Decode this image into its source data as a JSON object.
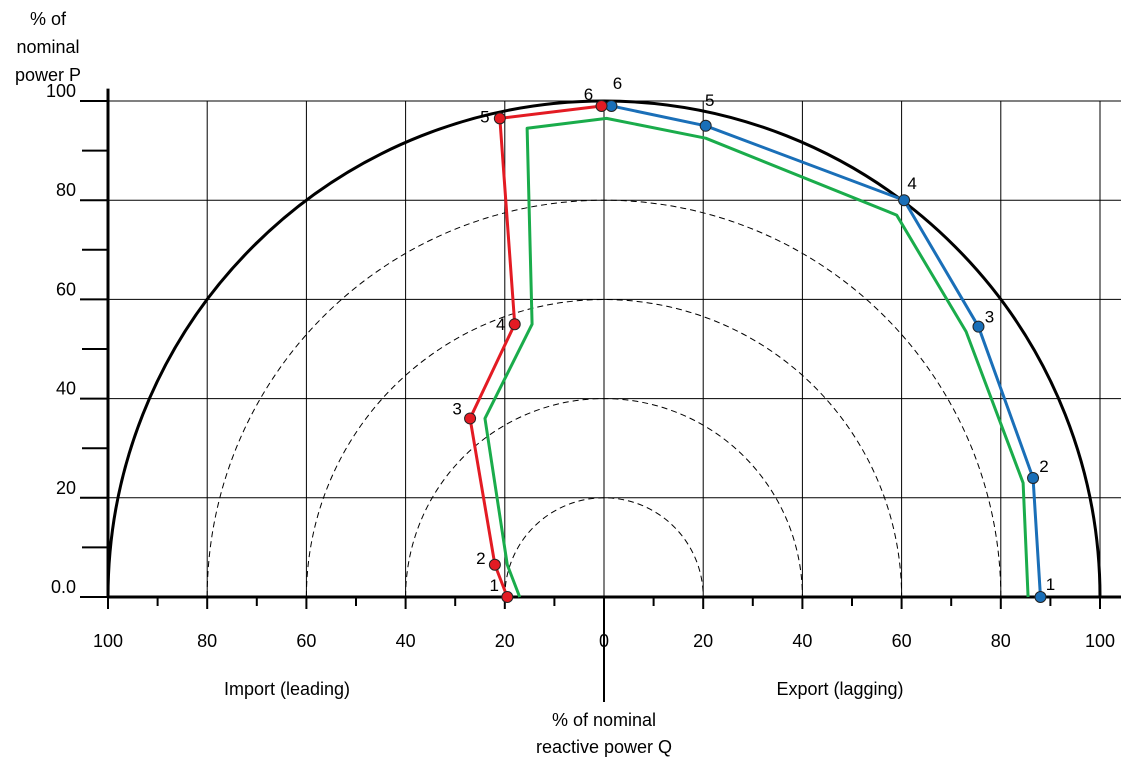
{
  "chart_data": {
    "type": "line",
    "title": "",
    "ylabel_lines": [
      "% of",
      "nominal",
      "power P"
    ],
    "xlabel_lines": [
      "% of nominal",
      "reactive power Q"
    ],
    "region_labels": {
      "left": "Import (leading)",
      "right": "Export (lagging)"
    },
    "x_tick_labels": [
      "100",
      "80",
      "60",
      "40",
      "20",
      "0",
      "20",
      "40",
      "60",
      "80",
      "100"
    ],
    "x_tick_values": [
      -100,
      -80,
      -60,
      -40,
      -20,
      0,
      20,
      40,
      60,
      80,
      100
    ],
    "y_tick_labels": [
      "0.0",
      "20",
      "40",
      "60",
      "80",
      "100"
    ],
    "y_tick_values": [
      0,
      20,
      40,
      60,
      80,
      100
    ],
    "xlim": [
      -100,
      100
    ],
    "ylim": [
      0,
      100
    ],
    "grid": true,
    "outer_circle_radius": 100,
    "dashed_circle_radii": [
      20,
      40,
      60,
      80
    ],
    "colors": {
      "red": "#e31b23",
      "blue": "#1a6fb8",
      "green": "#1aac4b",
      "axis": "#000000",
      "grid": "#000000"
    },
    "series": [
      {
        "color": "#e31b23",
        "markers": true,
        "points": [
          {
            "q": -19.5,
            "p": 0,
            "label": "1"
          },
          {
            "q": -22.0,
            "p": 6.5,
            "label": "2"
          },
          {
            "q": -27.0,
            "p": 36.0,
            "label": "3"
          },
          {
            "q": -18.0,
            "p": 55.0,
            "label": "4"
          },
          {
            "q": -21.0,
            "p": 96.5,
            "label": "5"
          },
          {
            "q": -0.5,
            "p": 99.0,
            "label": "6"
          }
        ]
      },
      {
        "color": "#1a6fb8",
        "markers": true,
        "points": [
          {
            "q": 88.0,
            "p": 0,
            "label": "1"
          },
          {
            "q": 86.5,
            "p": 24.0,
            "label": "2"
          },
          {
            "q": 75.5,
            "p": 54.5,
            "label": "3"
          },
          {
            "q": 60.5,
            "p": 80.0,
            "label": "4"
          },
          {
            "q": 20.5,
            "p": 95.0,
            "label": "5"
          },
          {
            "q": 1.5,
            "p": 99.0,
            "label": "6"
          }
        ]
      },
      {
        "color": "#1aac4b",
        "markers": false,
        "points": [
          {
            "q": -17.0,
            "p": 0
          },
          {
            "q": -19.5,
            "p": 6.5
          },
          {
            "q": -24.0,
            "p": 36.0
          },
          {
            "q": -14.5,
            "p": 55.0
          },
          {
            "q": -15.5,
            "p": 94.5
          },
          {
            "q": 0.5,
            "p": 96.5
          },
          {
            "q": 20.5,
            "p": 92.5
          },
          {
            "q": 59.0,
            "p": 77.0
          },
          {
            "q": 73.0,
            "p": 53.5
          },
          {
            "q": 84.5,
            "p": 23.0
          },
          {
            "q": 85.5,
            "p": 0
          }
        ]
      }
    ]
  }
}
